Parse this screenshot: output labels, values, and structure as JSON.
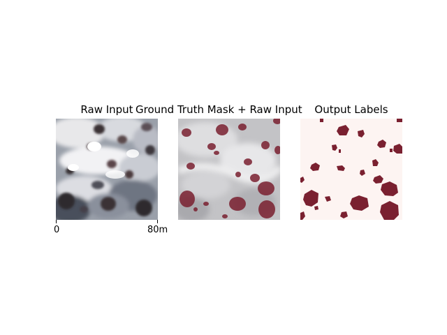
{
  "panels": {
    "raw": {
      "title": "Raw Input"
    },
    "ground_truth": {
      "title": "Ground Truth Mask + Raw Input"
    },
    "output": {
      "title": "Output Labels"
    }
  },
  "scale_bar": {
    "start_label": "0",
    "end_label": "80m"
  },
  "colors": {
    "mask": "#7a2030",
    "background_label": "#fdf4f2",
    "terrain_light": "#e8e8ea",
    "terrain_dark": "#3a3f48"
  }
}
